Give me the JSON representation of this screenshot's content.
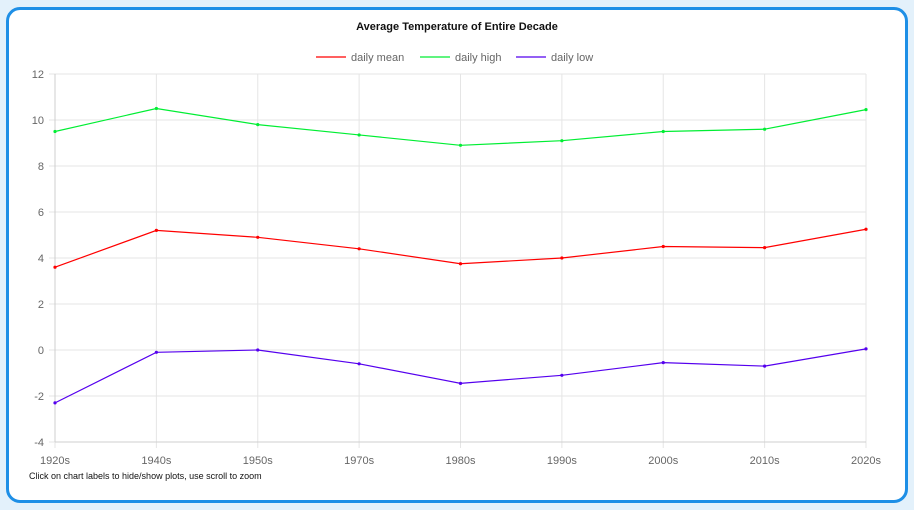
{
  "hint_text": "Click on chart labels to hide/show plots, use scroll to zoom",
  "chart_data": {
    "type": "line",
    "title": "Average Temperature of Entire Decade",
    "categories": [
      "1920s",
      "1940s",
      "1950s",
      "1970s",
      "1980s",
      "1990s",
      "2000s",
      "2010s",
      "2020s"
    ],
    "ylim": [
      -4,
      12
    ],
    "yticks": [
      12,
      10,
      8,
      6,
      4,
      2,
      0,
      -2,
      -4
    ],
    "grid": true,
    "legend_position": "top",
    "series": [
      {
        "name": "daily mean",
        "color": "#ff0000",
        "values": [
          3.6,
          5.2,
          4.9,
          4.4,
          3.75,
          4.0,
          4.5,
          4.45,
          5.25
        ]
      },
      {
        "name": "daily high",
        "color": "#00ee33",
        "values": [
          9.5,
          10.5,
          9.8,
          9.35,
          8.9,
          9.1,
          9.5,
          9.6,
          10.45
        ]
      },
      {
        "name": "daily low",
        "color": "#5500ee",
        "values": [
          -2.3,
          -0.1,
          0.0,
          -0.6,
          -1.45,
          -1.1,
          -0.55,
          -0.7,
          0.05
        ]
      }
    ]
  }
}
